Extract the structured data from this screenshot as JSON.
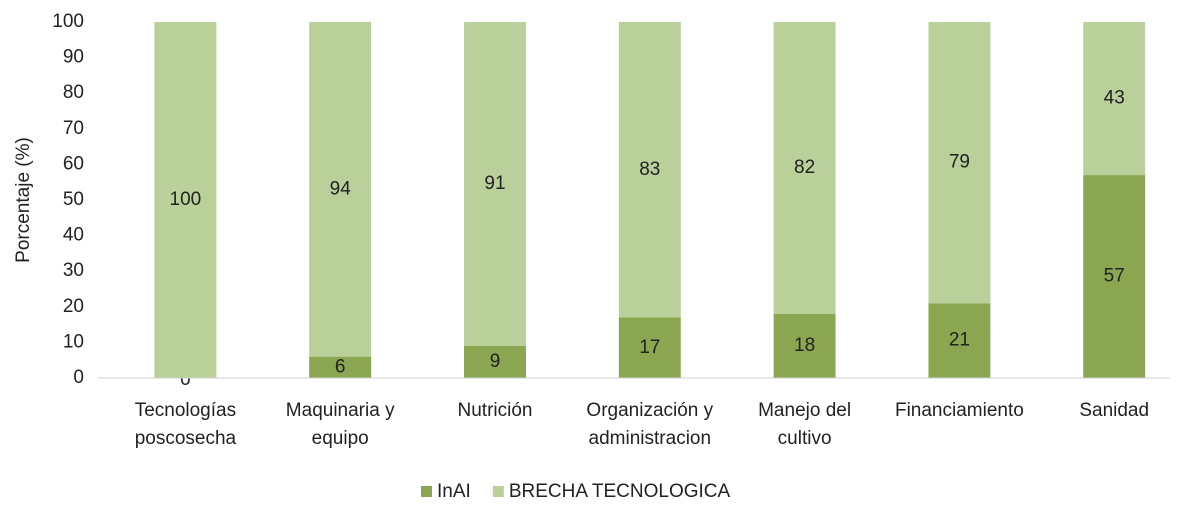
{
  "chart_data": {
    "type": "stacked_bar",
    "y_label": "Porcentaje (%)",
    "categories": [
      [
        "Tecnologías",
        "poscosecha"
      ],
      [
        "Maquinaria y",
        "equipo"
      ],
      [
        "Nutrición"
      ],
      [
        "Organización y",
        "administracion"
      ],
      [
        "Manejo del",
        "cultivo"
      ],
      [
        "Financiamiento"
      ],
      [
        "Sanidad"
      ]
    ],
    "series": [
      {
        "name": "InAI",
        "color": "#8aa650",
        "values": [
          0,
          6,
          9,
          17,
          18,
          21,
          57
        ]
      },
      {
        "name": "BRECHA TECNOLOGICA",
        "color": "#b9d09a",
        "values": [
          100,
          94,
          91,
          83,
          82,
          79,
          43
        ]
      }
    ],
    "ylim": [
      0,
      100
    ],
    "yticks": [
      0,
      10,
      20,
      30,
      40,
      50,
      60,
      70,
      80,
      90,
      100
    ],
    "legend": "bottom"
  }
}
